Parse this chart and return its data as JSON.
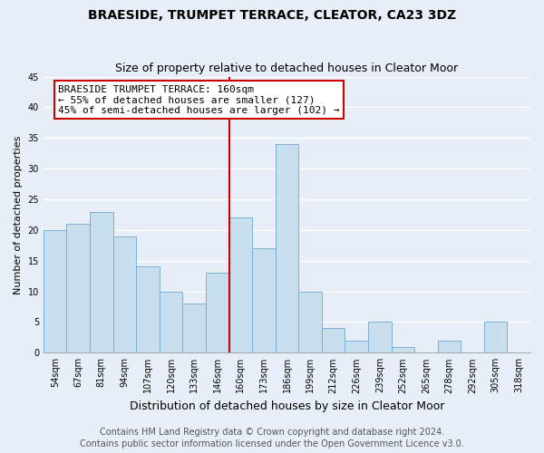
{
  "title": "BRAESIDE, TRUMPET TERRACE, CLEATOR, CA23 3DZ",
  "subtitle": "Size of property relative to detached houses in Cleator Moor",
  "xlabel": "Distribution of detached houses by size in Cleator Moor",
  "ylabel": "Number of detached properties",
  "bin_labels": [
    "54sqm",
    "67sqm",
    "81sqm",
    "94sqm",
    "107sqm",
    "120sqm",
    "133sqm",
    "146sqm",
    "160sqm",
    "173sqm",
    "186sqm",
    "199sqm",
    "212sqm",
    "226sqm",
    "239sqm",
    "252sqm",
    "265sqm",
    "278sqm",
    "292sqm",
    "305sqm",
    "318sqm"
  ],
  "bar_values": [
    20,
    21,
    23,
    19,
    14,
    10,
    8,
    13,
    22,
    17,
    34,
    10,
    4,
    2,
    5,
    1,
    0,
    2,
    0,
    5,
    0
  ],
  "bar_color": "#c8dff0",
  "bar_edge_color": "#7ab0d4",
  "marker_bin_index": 8,
  "marker_line_color": "#cc0000",
  "annotation_line1": "BRAESIDE TRUMPET TERRACE: 160sqm",
  "annotation_line2": "← 55% of detached houses are smaller (127)",
  "annotation_line3": "45% of semi-detached houses are larger (102) →",
  "annotation_box_facecolor": "#ffffff",
  "annotation_box_edgecolor": "#cc0000",
  "ylim": [
    0,
    45
  ],
  "yticks": [
    0,
    5,
    10,
    15,
    20,
    25,
    30,
    35,
    40,
    45
  ],
  "background_color": "#e8eef8",
  "plot_background_color": "#e8eef8",
  "grid_color": "#ffffff",
  "title_fontsize": 10,
  "subtitle_fontsize": 9,
  "xlabel_fontsize": 9,
  "ylabel_fontsize": 8,
  "tick_fontsize": 7,
  "annotation_fontsize": 8,
  "footer_fontsize": 7
}
